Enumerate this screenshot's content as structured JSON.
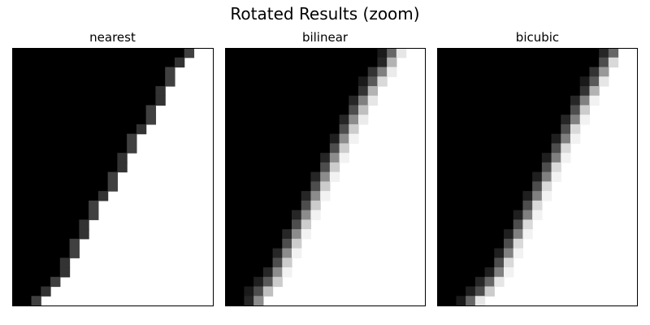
{
  "figure": {
    "title": "Rotated Results (zoom)"
  },
  "chart_data": [
    {
      "type": "heatmap",
      "title": "nearest",
      "interpolation": "nearest",
      "colormap": "gray",
      "vmin": 0,
      "vmax": 1,
      "axes_visible": false,
      "grid": false,
      "rows": 27,
      "cols": 21,
      "edge_rows": [
        {
          "row": 0,
          "transition": [
            [
              18,
              0.25
            ]
          ]
        },
        {
          "row": 1,
          "transition": [
            [
              17,
              0.2
            ]
          ]
        },
        {
          "row": 2,
          "transition": [
            [
              16,
              0.25
            ]
          ]
        },
        {
          "row": 3,
          "transition": [
            [
              16,
              0.25
            ]
          ]
        },
        {
          "row": 4,
          "transition": [
            [
              15,
              0.2
            ]
          ]
        },
        {
          "row": 5,
          "transition": [
            [
              15,
              0.2
            ]
          ]
        },
        {
          "row": 6,
          "transition": [
            [
              14,
              0.25
            ]
          ]
        },
        {
          "row": 7,
          "transition": [
            [
              14,
              0.25
            ]
          ]
        },
        {
          "row": 8,
          "transition": [
            [
              13,
              0.2
            ]
          ]
        },
        {
          "row": 9,
          "transition": [
            [
              12,
              0.25
            ]
          ]
        },
        {
          "row": 10,
          "transition": [
            [
              12,
              0.25
            ]
          ]
        },
        {
          "row": 11,
          "transition": [
            [
              11,
              0.2
            ]
          ]
        },
        {
          "row": 12,
          "transition": [
            [
              11,
              0.2
            ]
          ]
        },
        {
          "row": 13,
          "transition": [
            [
              10,
              0.25
            ]
          ]
        },
        {
          "row": 14,
          "transition": [
            [
              10,
              0.25
            ]
          ]
        },
        {
          "row": 15,
          "transition": [
            [
              9,
              0.2
            ]
          ]
        },
        {
          "row": 16,
          "transition": [
            [
              8,
              0.25
            ]
          ]
        },
        {
          "row": 17,
          "transition": [
            [
              8,
              0.25
            ]
          ]
        },
        {
          "row": 18,
          "transition": [
            [
              7,
              0.2
            ]
          ]
        },
        {
          "row": 19,
          "transition": [
            [
              7,
              0.2
            ]
          ]
        },
        {
          "row": 20,
          "transition": [
            [
              6,
              0.25
            ]
          ]
        },
        {
          "row": 21,
          "transition": [
            [
              6,
              0.25
            ]
          ]
        },
        {
          "row": 22,
          "transition": [
            [
              5,
              0.2
            ]
          ]
        },
        {
          "row": 23,
          "transition": [
            [
              5,
              0.2
            ]
          ]
        },
        {
          "row": 24,
          "transition": [
            [
              4,
              0.25
            ]
          ]
        },
        {
          "row": 25,
          "transition": [
            [
              3,
              0.2
            ]
          ]
        },
        {
          "row": 26,
          "transition": [
            [
              2,
              0.25
            ]
          ]
        }
      ]
    },
    {
      "type": "heatmap",
      "title": "bilinear",
      "interpolation": "bilinear",
      "colormap": "gray",
      "vmin": 0,
      "vmax": 1,
      "axes_visible": false,
      "grid": false,
      "rows": 27,
      "cols": 21,
      "edge_rows": [
        {
          "row": 0,
          "transition": [
            [
              16,
              0.1
            ],
            [
              17,
              0.4
            ],
            [
              18,
              0.9
            ]
          ]
        },
        {
          "row": 1,
          "transition": [
            [
              16,
              0.15
            ],
            [
              17,
              0.7
            ]
          ]
        },
        {
          "row": 2,
          "transition": [
            [
              15,
              0.2
            ],
            [
              16,
              0.5
            ],
            [
              17,
              0.92
            ]
          ]
        },
        {
          "row": 3,
          "transition": [
            [
              14,
              0.1
            ],
            [
              15,
              0.35
            ],
            [
              16,
              0.85
            ]
          ]
        },
        {
          "row": 4,
          "transition": [
            [
              14,
              0.2
            ],
            [
              15,
              0.7
            ]
          ]
        },
        {
          "row": 5,
          "transition": [
            [
              13,
              0.15
            ],
            [
              14,
              0.5
            ],
            [
              15,
              0.9
            ]
          ]
        },
        {
          "row": 6,
          "transition": [
            [
              13,
              0.3
            ],
            [
              14,
              0.75
            ]
          ]
        },
        {
          "row": 7,
          "transition": [
            [
              12,
              0.15
            ],
            [
              13,
              0.55
            ],
            [
              14,
              0.92
            ]
          ]
        },
        {
          "row": 8,
          "transition": [
            [
              12,
              0.3
            ],
            [
              13,
              0.8
            ]
          ]
        },
        {
          "row": 9,
          "transition": [
            [
              11,
              0.12
            ],
            [
              12,
              0.55
            ],
            [
              13,
              0.95
            ]
          ]
        },
        {
          "row": 10,
          "transition": [
            [
              11,
              0.3
            ],
            [
              12,
              0.8
            ]
          ]
        },
        {
          "row": 11,
          "transition": [
            [
              10,
              0.15
            ],
            [
              11,
              0.55
            ],
            [
              12,
              0.95
            ]
          ]
        },
        {
          "row": 12,
          "transition": [
            [
              10,
              0.3
            ],
            [
              11,
              0.8
            ]
          ]
        },
        {
          "row": 13,
          "transition": [
            [
              9,
              0.15
            ],
            [
              10,
              0.55
            ],
            [
              11,
              0.95
            ]
          ]
        },
        {
          "row": 14,
          "transition": [
            [
              9,
              0.3
            ],
            [
              10,
              0.8
            ]
          ]
        },
        {
          "row": 15,
          "transition": [
            [
              8,
              0.15
            ],
            [
              9,
              0.55
            ],
            [
              10,
              0.95
            ]
          ]
        },
        {
          "row": 16,
          "transition": [
            [
              8,
              0.3
            ],
            [
              9,
              0.8
            ]
          ]
        },
        {
          "row": 17,
          "transition": [
            [
              7,
              0.15
            ],
            [
              8,
              0.55
            ],
            [
              9,
              0.95
            ]
          ]
        },
        {
          "row": 18,
          "transition": [
            [
              7,
              0.3
            ],
            [
              8,
              0.8
            ]
          ]
        },
        {
          "row": 19,
          "transition": [
            [
              6,
              0.15
            ],
            [
              7,
              0.55
            ],
            [
              8,
              0.95
            ]
          ]
        },
        {
          "row": 20,
          "transition": [
            [
              6,
              0.3
            ],
            [
              7,
              0.8
            ]
          ]
        },
        {
          "row": 21,
          "transition": [
            [
              5,
              0.15
            ],
            [
              6,
              0.55
            ],
            [
              7,
              0.95
            ]
          ]
        },
        {
          "row": 22,
          "transition": [
            [
              5,
              0.3
            ],
            [
              6,
              0.8
            ]
          ]
        },
        {
          "row": 23,
          "transition": [
            [
              4,
              0.15
            ],
            [
              5,
              0.55
            ],
            [
              6,
              0.95
            ]
          ]
        },
        {
          "row": 24,
          "transition": [
            [
              3,
              0.12
            ],
            [
              4,
              0.35
            ],
            [
              5,
              0.8
            ]
          ]
        },
        {
          "row": 25,
          "transition": [
            [
              2,
              0.1
            ],
            [
              3,
              0.3
            ],
            [
              4,
              0.75
            ]
          ]
        },
        {
          "row": 26,
          "transition": [
            [
              2,
              0.15
            ],
            [
              3,
              0.55
            ]
          ]
        }
      ]
    },
    {
      "type": "heatmap",
      "title": "bicubic",
      "interpolation": "bicubic",
      "colormap": "gray",
      "vmin": 0,
      "vmax": 1,
      "axes_visible": false,
      "grid": false,
      "rows": 27,
      "cols": 21,
      "edge_rows": [
        {
          "row": 0,
          "transition": [
            [
              17,
              0.15
            ],
            [
              18,
              0.4
            ]
          ]
        },
        {
          "row": 1,
          "transition": [
            [
              17,
              0.3
            ],
            [
              18,
              0.85
            ]
          ]
        },
        {
          "row": 2,
          "transition": [
            [
              16,
              0.2
            ],
            [
              17,
              0.6
            ]
          ]
        },
        {
          "row": 3,
          "transition": [
            [
              15,
              0.1
            ],
            [
              16,
              0.35
            ],
            [
              17,
              0.9
            ]
          ]
        },
        {
          "row": 4,
          "transition": [
            [
              15,
              0.2
            ],
            [
              16,
              0.7
            ]
          ]
        },
        {
          "row": 5,
          "transition": [
            [
              14,
              0.15
            ],
            [
              15,
              0.5
            ],
            [
              16,
              0.95
            ]
          ]
        },
        {
          "row": 6,
          "transition": [
            [
              14,
              0.3
            ],
            [
              15,
              0.8
            ]
          ]
        },
        {
          "row": 7,
          "transition": [
            [
              13,
              0.15
            ],
            [
              14,
              0.5
            ],
            [
              15,
              0.95
            ]
          ]
        },
        {
          "row": 8,
          "transition": [
            [
              13,
              0.3
            ],
            [
              14,
              0.85
            ]
          ]
        },
        {
          "row": 9,
          "transition": [
            [
              12,
              0.12
            ],
            [
              13,
              0.5
            ],
            [
              14,
              0.95
            ]
          ]
        },
        {
          "row": 10,
          "transition": [
            [
              12,
              0.3
            ],
            [
              13,
              0.85
            ]
          ]
        },
        {
          "row": 11,
          "transition": [
            [
              11,
              0.12
            ],
            [
              12,
              0.5
            ],
            [
              13,
              0.95
            ]
          ]
        },
        {
          "row": 12,
          "transition": [
            [
              11,
              0.3
            ],
            [
              12,
              0.85
            ]
          ]
        },
        {
          "row": 13,
          "transition": [
            [
              10,
              0.12
            ],
            [
              11,
              0.5
            ],
            [
              12,
              0.95
            ]
          ]
        },
        {
          "row": 14,
          "transition": [
            [
              10,
              0.3
            ],
            [
              11,
              0.85
            ]
          ]
        },
        {
          "row": 15,
          "transition": [
            [
              9,
              0.12
            ],
            [
              10,
              0.5
            ],
            [
              11,
              0.95
            ]
          ]
        },
        {
          "row": 16,
          "transition": [
            [
              9,
              0.3
            ],
            [
              10,
              0.85
            ]
          ]
        },
        {
          "row": 17,
          "transition": [
            [
              8,
              0.12
            ],
            [
              9,
              0.5
            ],
            [
              10,
              0.95
            ]
          ]
        },
        {
          "row": 18,
          "transition": [
            [
              8,
              0.3
            ],
            [
              9,
              0.85
            ]
          ]
        },
        {
          "row": 19,
          "transition": [
            [
              7,
              0.12
            ],
            [
              8,
              0.5
            ],
            [
              9,
              0.95
            ]
          ]
        },
        {
          "row": 20,
          "transition": [
            [
              7,
              0.3
            ],
            [
              8,
              0.85
            ]
          ]
        },
        {
          "row": 21,
          "transition": [
            [
              6,
              0.12
            ],
            [
              7,
              0.5
            ],
            [
              8,
              0.95
            ]
          ]
        },
        {
          "row": 22,
          "transition": [
            [
              6,
              0.3
            ],
            [
              7,
              0.85
            ]
          ]
        },
        {
          "row": 23,
          "transition": [
            [
              5,
              0.12
            ],
            [
              6,
              0.5
            ],
            [
              7,
              0.95
            ]
          ]
        },
        {
          "row": 24,
          "transition": [
            [
              4,
              0.15
            ],
            [
              5,
              0.4
            ],
            [
              6,
              0.9
            ]
          ]
        },
        {
          "row": 25,
          "transition": [
            [
              3,
              0.12
            ],
            [
              4,
              0.3
            ],
            [
              5,
              0.8
            ]
          ]
        },
        {
          "row": 26,
          "transition": [
            [
              2,
              0.1
            ],
            [
              3,
              0.4
            ],
            [
              4,
              0.9
            ]
          ]
        }
      ]
    }
  ]
}
